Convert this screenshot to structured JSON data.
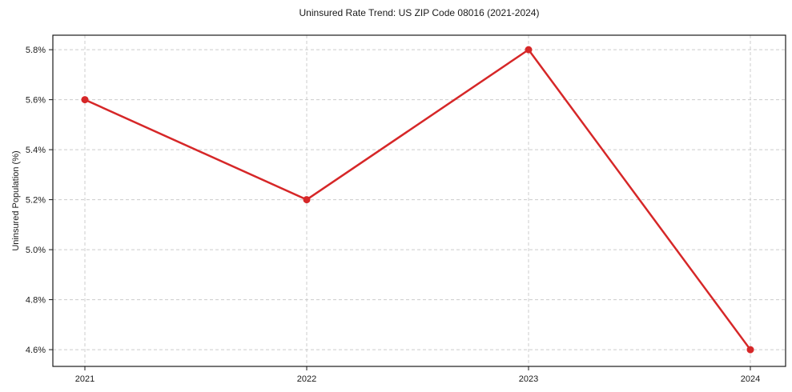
{
  "chart": {
    "title": "Uninsured Rate Trend: US ZIP Code 08016 (2021-2024)",
    "ylabel": "Uninsured Population (%)"
  },
  "chart_data": {
    "type": "line",
    "title": "Uninsured Rate Trend: US ZIP Code 08016 (2021-2024)",
    "xlabel": "",
    "ylabel": "Uninsured Population (%)",
    "categories": [
      "2021",
      "2022",
      "2023",
      "2024"
    ],
    "series": [
      {
        "name": "Uninsured Population (%)",
        "values": [
          5.6,
          5.2,
          5.8,
          4.6
        ]
      }
    ],
    "yticks": [
      {
        "value": 4.6,
        "label": "4.6%"
      },
      {
        "value": 4.8,
        "label": "4.8%"
      },
      {
        "value": 5.0,
        "label": "5.0%"
      },
      {
        "value": 5.2,
        "label": "5.2%"
      },
      {
        "value": 5.4,
        "label": "5.4%"
      },
      {
        "value": 5.6,
        "label": "5.6%"
      },
      {
        "value": 5.8,
        "label": "5.8%"
      }
    ],
    "ylim": [
      4.533,
      5.858
    ],
    "grid": "dashed",
    "legend": "none",
    "colors": {
      "line": "#d62728",
      "marker": "#d62728",
      "grid": "#cccccc",
      "spine": "#1a1a1a",
      "text": "#1a1a1a"
    },
    "marker": "circle"
  }
}
